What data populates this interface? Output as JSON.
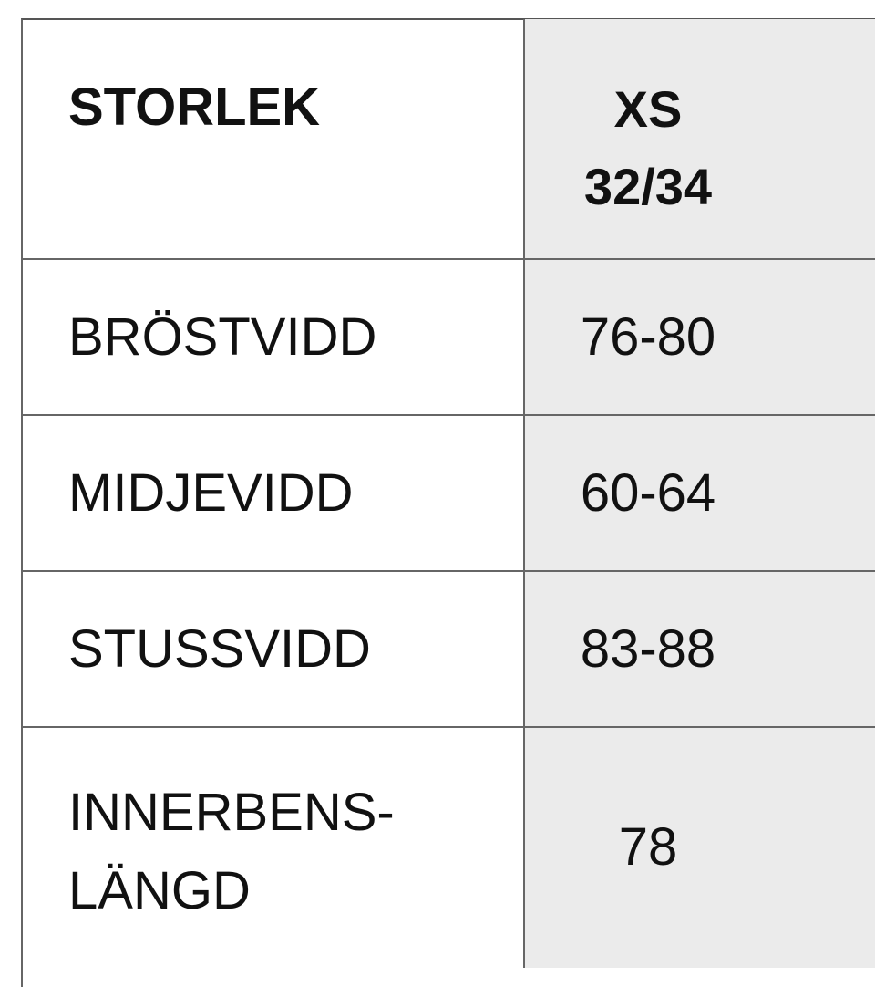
{
  "header": {
    "label": "STORLEK",
    "size": "XS",
    "size_eu": "32/34"
  },
  "rows": [
    {
      "label": "BRÖSTVIDD",
      "value": "76-80"
    },
    {
      "label": "MIDJEVIDD",
      "value": "60-64"
    },
    {
      "label": "STUSSVIDD",
      "value": "83-88"
    },
    {
      "label": "INNERBENS-",
      "label2": "LÄNGD",
      "value": "78"
    }
  ],
  "colors": {
    "border": "#666666",
    "size_column_bg": "#ebebeb"
  }
}
